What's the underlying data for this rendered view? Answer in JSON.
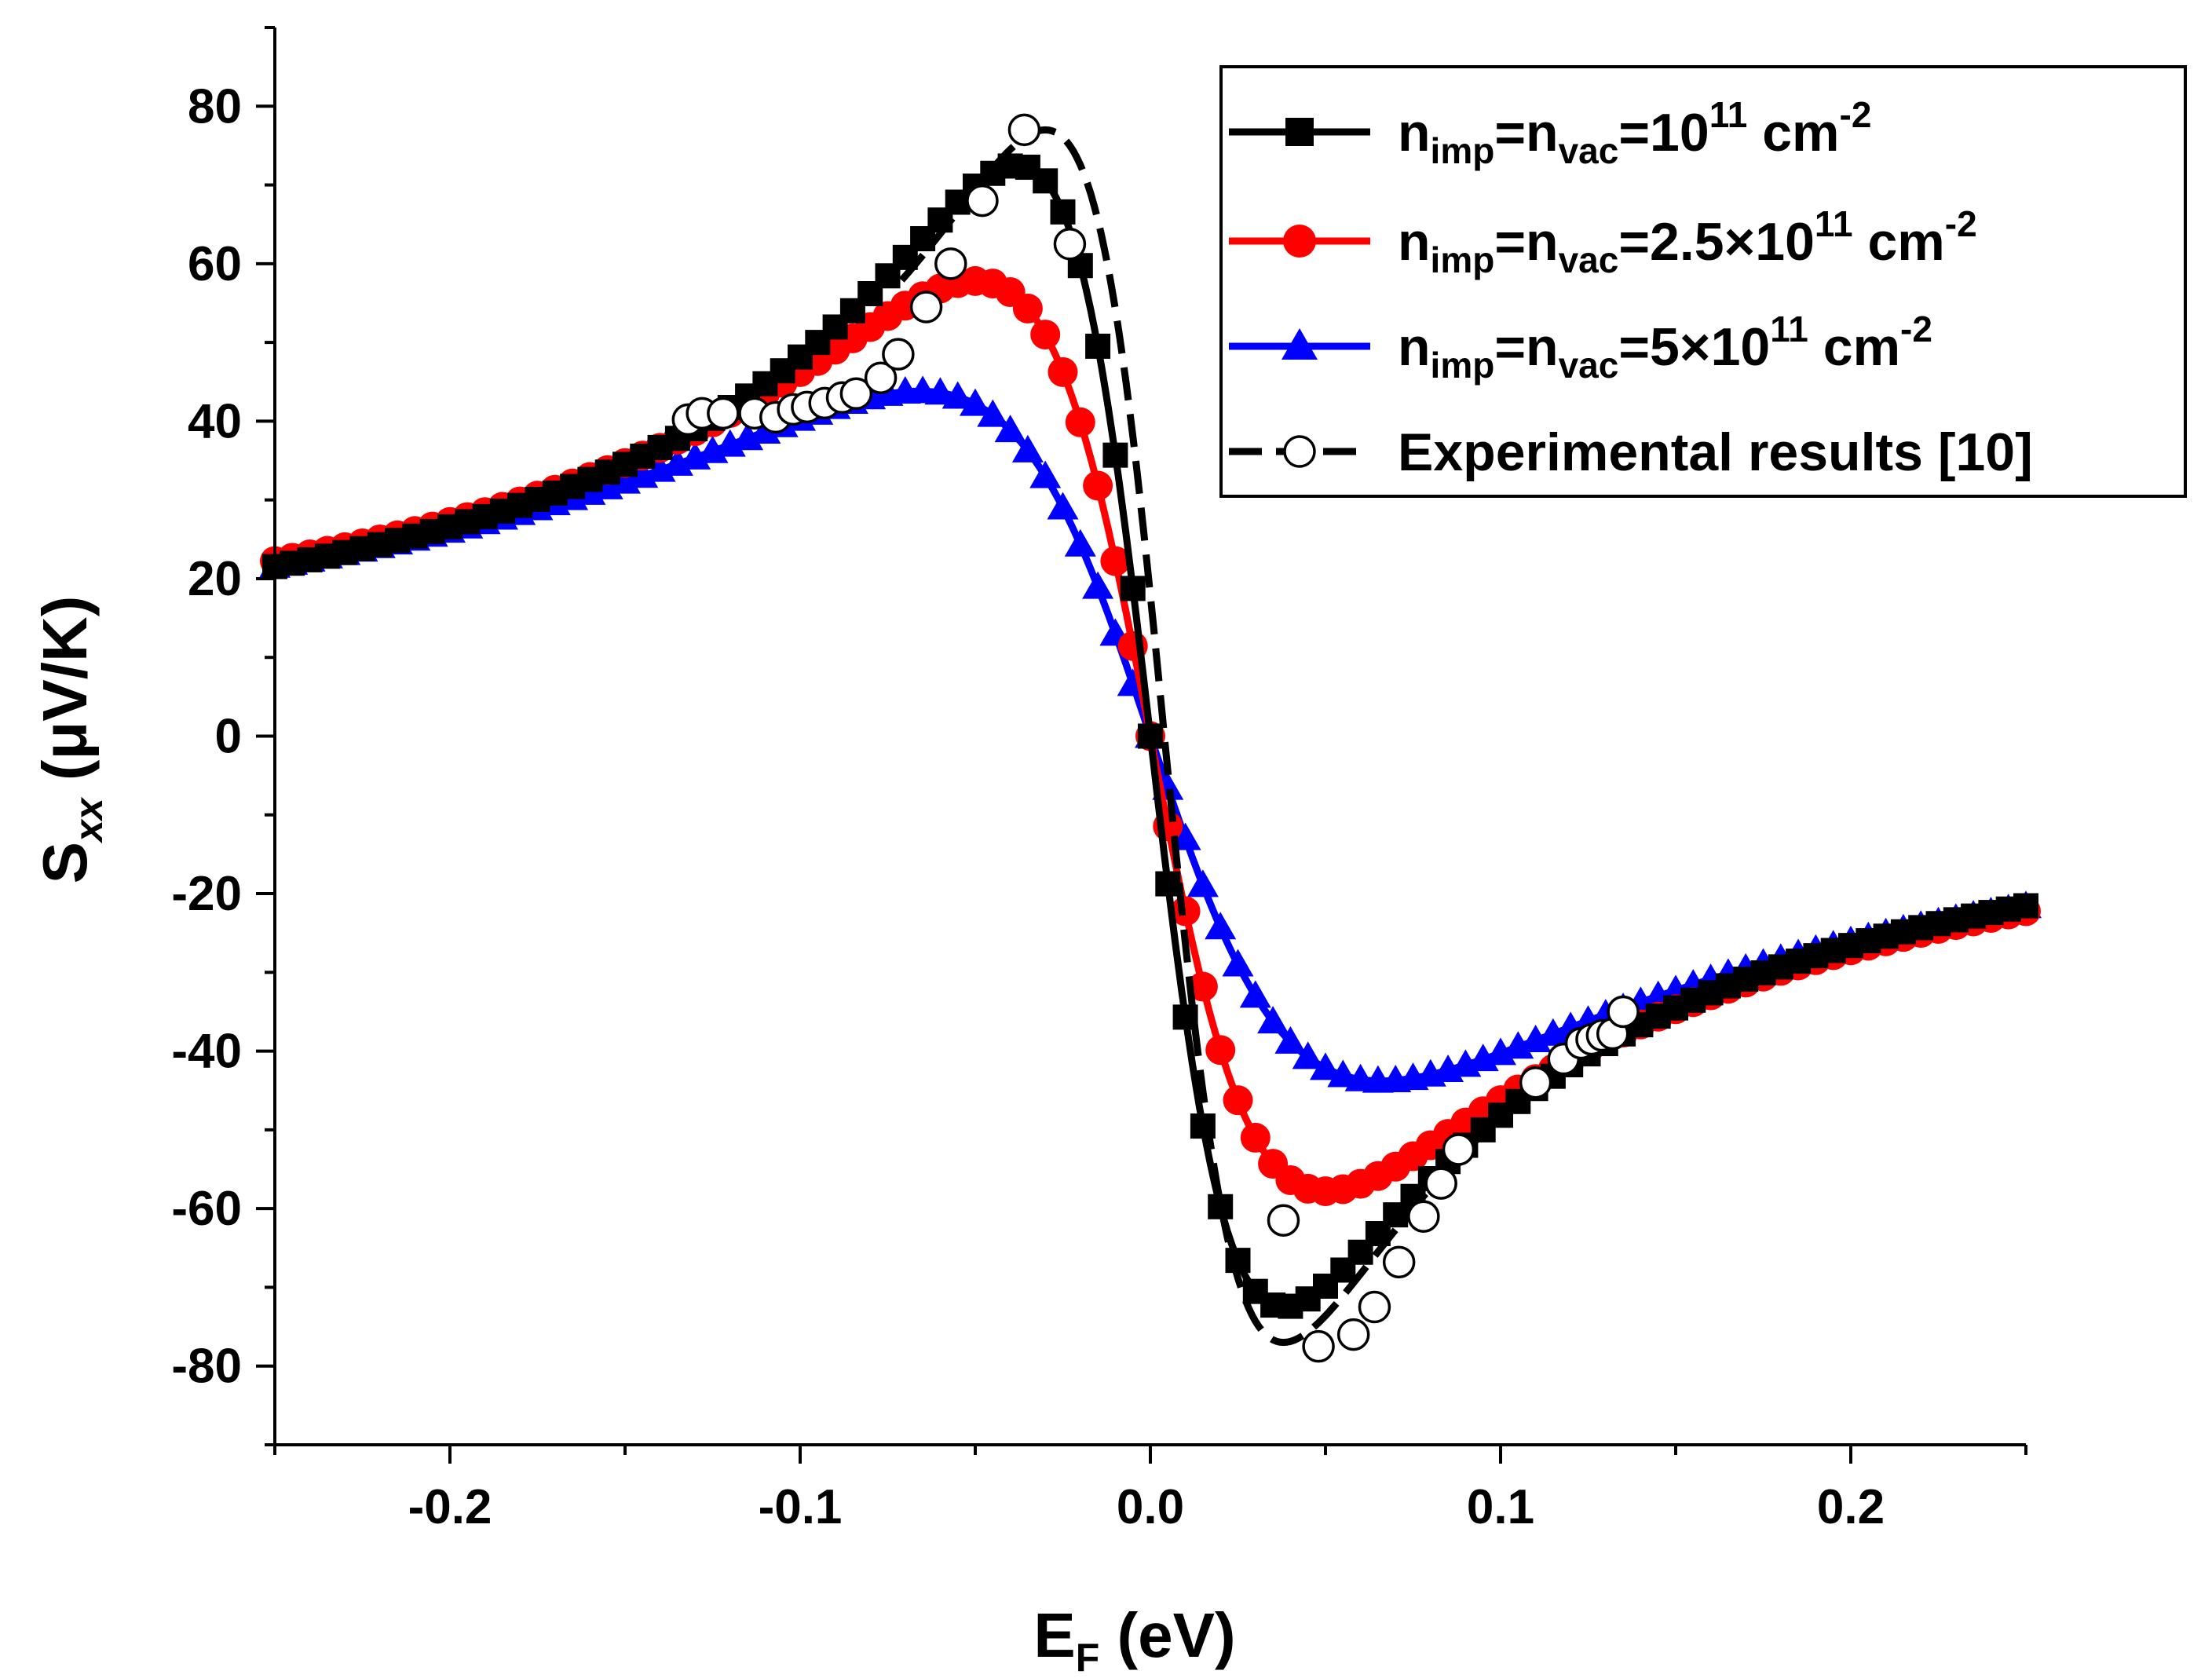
{
  "chart_data": {
    "type": "line",
    "title": "",
    "xlabel": {
      "main": "E",
      "sub": "F",
      "unit": " (eV)"
    },
    "ylabel": {
      "main": "S",
      "sub": "xx",
      "unit": " (μV/K)"
    },
    "xlim": [
      -0.25,
      0.25
    ],
    "ylim": [
      -90,
      90
    ],
    "xticks": [
      -0.2,
      -0.1,
      0.0,
      0.1,
      0.2
    ],
    "xtick_labels": [
      "-0.2",
      "-0.1",
      "0.0",
      "0.1",
      "0.2"
    ],
    "yticks": [
      80,
      60,
      40,
      20,
      0,
      -20,
      -40,
      -60,
      -80
    ],
    "ytick_labels": [
      "80",
      "60",
      "40",
      "20",
      "0",
      "-20",
      "-40",
      "-60",
      "-80"
    ],
    "legend_position": "top-right",
    "series": [
      {
        "name": "n_imp=n_vac=10^11 cm^-2",
        "legend": {
          "n1": "n",
          "s1": "imp",
          "eq1": "=n",
          "s2": "vac",
          "eq2": "=10",
          "sup1": "11",
          "unit": " cm",
          "sup2": "-2"
        },
        "color": "#000000",
        "marker": "square",
        "dashed": false,
        "marker_step": 0.005,
        "peak": {
          "x": -0.032,
          "y": 72.5,
          "w": 0.038
        }
      },
      {
        "name": "n_imp=n_vac=2.5×10^11 cm^-2",
        "legend": {
          "n1": "n",
          "s1": "imp",
          "eq1": "=n",
          "s2": "vac",
          "eq2": "=2.5×10",
          "sup1": "11",
          "unit": " cm",
          "sup2": "-2"
        },
        "color": "#ff0000",
        "marker": "circle",
        "dashed": false,
        "marker_step": 0.005,
        "peak": {
          "x": -0.042,
          "y": 57.8,
          "w": 0.05
        }
      },
      {
        "name": "n_imp=n_vac=5×10^11 cm^-2",
        "legend": {
          "n1": "n",
          "s1": "imp",
          "eq1": "=n",
          "s2": "vac",
          "eq2": "=5×10",
          "sup1": "11",
          "unit": " cm",
          "sup2": "-2"
        },
        "color": "#0000ff",
        "marker": "triangle",
        "dashed": false,
        "marker_step": 0.005,
        "peak": {
          "x": -0.052,
          "y": 43.8,
          "w": 0.066
        }
      },
      {
        "name": "Experimental results [10]",
        "legend": {
          "text": "Experimental results [10]"
        },
        "color": "#000000",
        "marker": "open-circle",
        "dashed": true,
        "x": [
          -0.132,
          -0.128,
          -0.122,
          -0.113,
          -0.107,
          -0.102,
          -0.098,
          -0.093,
          -0.088,
          -0.084,
          -0.077,
          -0.072,
          -0.064,
          -0.057,
          -0.048,
          -0.036,
          -0.023,
          0.038,
          0.048,
          0.058,
          0.064,
          0.071,
          0.078,
          0.083,
          0.088,
          0.11,
          0.118,
          0.123,
          0.126,
          0.129,
          0.132,
          0.135
        ],
        "y": [
          40.2,
          41.0,
          41.0,
          41.0,
          40.5,
          41.5,
          41.8,
          42.3,
          43.0,
          43.5,
          45.5,
          48.5,
          54.5,
          60.0,
          68.0,
          77.0,
          62.5,
          -61.5,
          -77.5,
          -76.0,
          -72.5,
          -66.8,
          -61.0,
          -56.8,
          -52.5,
          -44.0,
          -41.0,
          -39.0,
          -38.5,
          -38.0,
          -37.8,
          -35.0
        ]
      }
    ]
  }
}
